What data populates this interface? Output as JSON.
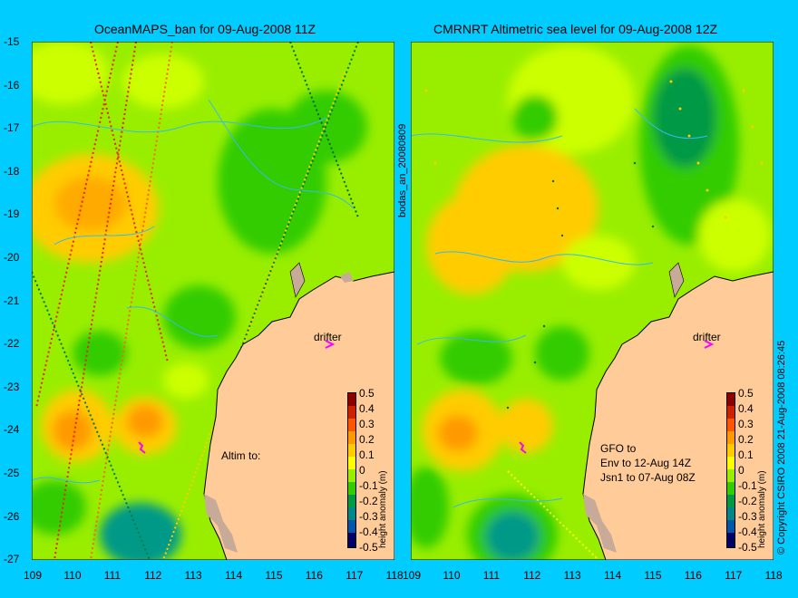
{
  "left_panel": {
    "title": "OceanMAPS_ban for 09-Aug-2008 11Z",
    "side_label": "bodas_an_20080809",
    "drifter_label": "drifter",
    "altim_label": "Altim to:"
  },
  "right_panel": {
    "title": "CMRNRT Altimetric sea level  for 09-Aug-2008 12Z",
    "drifter_label": "drifter",
    "gfo_label": "GFO to",
    "env_label": "Env to 12-Aug 14Z",
    "jsn_label": "Jsn1 to 07-Aug 08Z"
  },
  "y_ticks": [
    "-15",
    "-16",
    "-17",
    "-18",
    "-19",
    "-20",
    "-21",
    "-22",
    "-23",
    "-24",
    "-25",
    "-26",
    "-27"
  ],
  "x_ticks": [
    "109",
    "110",
    "111",
    "112",
    "113",
    "114",
    "115",
    "116",
    "117",
    "118"
  ],
  "colorbar": {
    "ticks": [
      "0.5",
      "0.4",
      "0.3",
      "0.2",
      "0.1",
      "0",
      "-0.1",
      "-0.2",
      "-0.3",
      "-0.4",
      "-0.5"
    ],
    "label": "height anomaly (m)",
    "colors": [
      "#8b0000",
      "#cc2200",
      "#ff5500",
      "#ff9900",
      "#ffcc00",
      "#ffff00",
      "#99ee00",
      "#33cc00",
      "#009944",
      "#008888",
      "#0055aa",
      "#0000aa",
      "#000066"
    ]
  },
  "copyright": "© Copyright CSIRO 2008   21-Aug-2008 08:26:45",
  "colors": {
    "background": "#00ccff",
    "land": "#ffcc99",
    "sea_base": "#99ee00"
  }
}
